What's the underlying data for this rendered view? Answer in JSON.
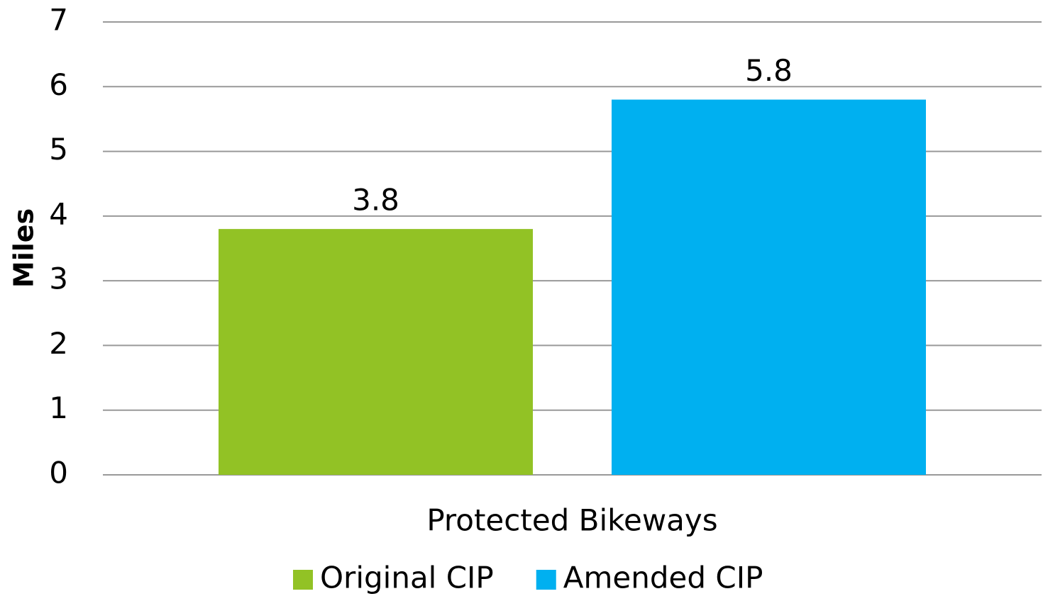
{
  "chart_data": {
    "type": "bar",
    "y_label": "Miles",
    "categories": [
      "Protected Bikeways"
    ],
    "series": [
      {
        "name": "Original CIP",
        "color": "#92c225",
        "values": [
          3.8
        ]
      },
      {
        "name": "Amended CIP",
        "color": "#00b0f0",
        "values": [
          5.8
        ]
      }
    ],
    "ylim": [
      0,
      7
    ],
    "yticks": [
      0,
      1,
      2,
      3,
      4,
      5,
      6,
      7
    ],
    "grid": true,
    "legend": "bottom"
  }
}
